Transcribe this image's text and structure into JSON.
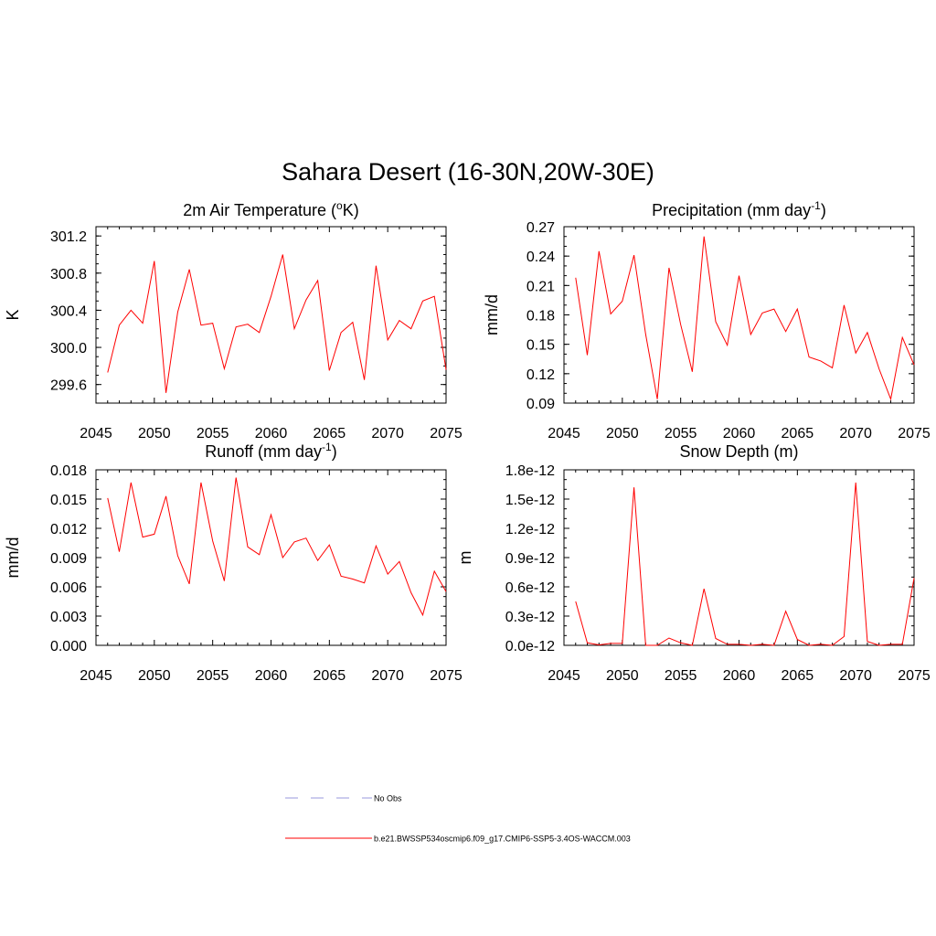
{
  "title": "Sahara Desert (16-30N,20W-30E)",
  "colors": {
    "series": "#ff0000",
    "obs": "#9999dd",
    "axis": "#000000"
  },
  "legend": {
    "items": [
      {
        "label": "No Obs",
        "style": "dashed",
        "color": "#9999dd"
      },
      {
        "label": "b.e21.BWSSP534oscmip6.f09_g17.CMIP6-SSP5-3.4OS-WACCM.003",
        "style": "solid",
        "color": "#ff0000"
      }
    ]
  },
  "chart_data": [
    {
      "type": "line",
      "title_main": "2m Air Temperature (",
      "title_sup": "o",
      "title_rest": "K)",
      "ylabel": "K",
      "xlim": [
        2045,
        2075
      ],
      "ylim": [
        299.4,
        301.3
      ],
      "xticks": [
        2045,
        2050,
        2055,
        2060,
        2065,
        2070,
        2075
      ],
      "yticks": [
        299.6,
        300.0,
        300.4,
        300.8,
        301.2
      ],
      "ytick_labels": [
        "299.6",
        "300.0",
        "300.4",
        "300.8",
        "301.2"
      ],
      "ymajor_step": 0.4,
      "ymin_step": 0.1,
      "x": [
        2046,
        2047,
        2048,
        2049,
        2050,
        2051,
        2052,
        2053,
        2054,
        2055,
        2056,
        2057,
        2058,
        2059,
        2060,
        2061,
        2062,
        2063,
        2064,
        2065,
        2066,
        2067,
        2068,
        2069,
        2070,
        2071,
        2072,
        2073,
        2074,
        2075
      ],
      "series": [
        {
          "name": "b.e21.BWSSP534oscmip6.f09_g17.CMIP6-SSP5-3.4OS-WACCM.003",
          "values": [
            299.73,
            300.24,
            300.4,
            300.26,
            300.93,
            299.51,
            300.38,
            300.84,
            300.24,
            300.26,
            299.77,
            300.22,
            300.25,
            300.16,
            300.55,
            301.0,
            300.2,
            300.51,
            300.72,
            299.75,
            300.16,
            300.27,
            299.65,
            300.88,
            300.08,
            300.29,
            300.2,
            300.5,
            300.55,
            299.76
          ]
        }
      ]
    },
    {
      "type": "line",
      "title_main": "Precipitation (mm day",
      "title_sup": "-1",
      "title_rest": ")",
      "ylabel": "mm/d",
      "xlim": [
        2045,
        2075
      ],
      "ylim": [
        0.09,
        0.27
      ],
      "xticks": [
        2045,
        2050,
        2055,
        2060,
        2065,
        2070,
        2075
      ],
      "yticks": [
        0.09,
        0.12,
        0.15,
        0.18,
        0.21,
        0.24,
        0.27
      ],
      "ytick_labels": [
        "0.09",
        "0.12",
        "0.15",
        "0.18",
        "0.21",
        "0.24",
        "0.27"
      ],
      "ymajor_step": 0.03,
      "ymin_step": 0.01,
      "x": [
        2046,
        2047,
        2048,
        2049,
        2050,
        2051,
        2052,
        2053,
        2054,
        2055,
        2056,
        2057,
        2058,
        2059,
        2060,
        2061,
        2062,
        2063,
        2064,
        2065,
        2066,
        2067,
        2068,
        2069,
        2070,
        2071,
        2072,
        2073,
        2074,
        2075
      ],
      "series": [
        {
          "name": "b.e21.BWSSP534oscmip6.f09_g17.CMIP6-SSP5-3.4OS-WACCM.003",
          "values": [
            0.218,
            0.139,
            0.245,
            0.181,
            0.194,
            0.241,
            0.16,
            0.094,
            0.228,
            0.17,
            0.122,
            0.26,
            0.173,
            0.149,
            0.22,
            0.16,
            0.182,
            0.186,
            0.163,
            0.186,
            0.137,
            0.133,
            0.126,
            0.19,
            0.141,
            0.162,
            0.125,
            0.094,
            0.157,
            0.129
          ]
        }
      ]
    },
    {
      "type": "line",
      "title_main": "Runoff (mm day",
      "title_sup": "-1",
      "title_rest": ")",
      "ylabel": "mm/d",
      "xlim": [
        2045,
        2075
      ],
      "ylim": [
        0.0,
        0.018
      ],
      "xticks": [
        2045,
        2050,
        2055,
        2060,
        2065,
        2070,
        2075
      ],
      "yticks": [
        0.0,
        0.003,
        0.006,
        0.009,
        0.012,
        0.015,
        0.018
      ],
      "ytick_labels": [
        "0.000",
        "0.003",
        "0.006",
        "0.009",
        "0.012",
        "0.015",
        "0.018"
      ],
      "ymajor_step": 0.003,
      "ymin_step": 0.001,
      "x": [
        2046,
        2047,
        2048,
        2049,
        2050,
        2051,
        2052,
        2053,
        2054,
        2055,
        2056,
        2057,
        2058,
        2059,
        2060,
        2061,
        2062,
        2063,
        2064,
        2065,
        2066,
        2067,
        2068,
        2069,
        2070,
        2071,
        2072,
        2073,
        2074,
        2075
      ],
      "series": [
        {
          "name": "b.e21.BWSSP534oscmip6.f09_g17.CMIP6-SSP5-3.4OS-WACCM.003",
          "values": [
            0.0151,
            0.0096,
            0.0167,
            0.0111,
            0.0114,
            0.0153,
            0.0092,
            0.0063,
            0.0167,
            0.0107,
            0.0066,
            0.0172,
            0.0101,
            0.0093,
            0.0134,
            0.009,
            0.0106,
            0.011,
            0.0087,
            0.0103,
            0.0071,
            0.0068,
            0.0064,
            0.0102,
            0.0073,
            0.0086,
            0.0054,
            0.0031,
            0.0076,
            0.0055
          ]
        }
      ]
    },
    {
      "type": "line",
      "title_main": "Snow Depth (m)",
      "title_sup": "",
      "title_rest": "",
      "ylabel": "m",
      "xlim": [
        2045,
        2075
      ],
      "ylim": [
        0.0,
        1.8e-12
      ],
      "xticks": [
        2045,
        2050,
        2055,
        2060,
        2065,
        2070,
        2075
      ],
      "yticks": [
        0.0,
        3e-13,
        6e-13,
        9e-13,
        1.2e-12,
        1.5e-12,
        1.8e-12
      ],
      "ytick_labels": [
        "0.0e-12",
        "0.3e-12",
        "0.6e-12",
        "0.9e-12",
        "1.2e-12",
        "1.5e-12",
        "1.8e-12"
      ],
      "ymajor_step": 3e-13,
      "ymin_step": 1e-13,
      "x": [
        2046,
        2047,
        2048,
        2049,
        2050,
        2051,
        2052,
        2053,
        2054,
        2055,
        2056,
        2057,
        2058,
        2059,
        2060,
        2061,
        2062,
        2063,
        2064,
        2065,
        2066,
        2067,
        2068,
        2069,
        2070,
        2071,
        2072,
        2073,
        2074,
        2075
      ],
      "series": [
        {
          "name": "b.e21.BWSSP534oscmip6.f09_g17.CMIP6-SSP5-3.4OS-WACCM.003",
          "values": [
            4.5e-13,
            2.5e-14,
            5e-15,
            2e-14,
            2e-14,
            1.62e-12,
            0,
            0,
            7.5e-14,
            2.5e-14,
            0,
            5.8e-13,
            7e-14,
            1e-14,
            1e-14,
            0,
            1e-14,
            0,
            3.5e-13,
            6e-14,
            0,
            1e-14,
            0,
            9e-14,
            1.67e-12,
            4e-14,
            0,
            1e-14,
            1e-14,
            6.9e-13
          ]
        }
      ]
    }
  ]
}
